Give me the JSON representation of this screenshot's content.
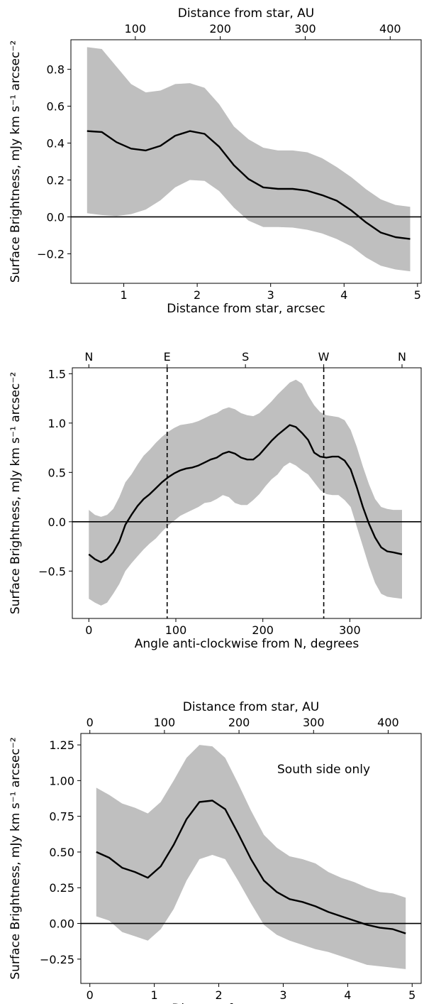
{
  "chart_data": [
    {
      "type": "line",
      "xlabel": "Distance from star, arcsec",
      "top_xlabel": "Distance from star, AU",
      "ylabel": "Surface Brightness, mJy km s⁻¹ arcsec⁻²",
      "xlim": [
        0.28,
        5.05
      ],
      "ylim": [
        -0.36,
        0.96
      ],
      "xticks": [
        1,
        2,
        3,
        4,
        5
      ],
      "xtick_labels": [
        "1",
        "2",
        "3",
        "4",
        "5"
      ],
      "yticks": [
        -0.2,
        0.0,
        0.2,
        0.4,
        0.6,
        0.8
      ],
      "ytick_labels": [
        "−0.2",
        "0.0",
        "0.2",
        "0.4",
        "0.6",
        "0.8"
      ],
      "top_ticks": [
        1.157,
        2.314,
        3.471,
        4.628
      ],
      "top_tick_labels": [
        "100",
        "200",
        "300",
        "400"
      ],
      "zero_line": true,
      "x": [
        0.5,
        0.7,
        0.9,
        1.1,
        1.3,
        1.5,
        1.7,
        1.9,
        2.1,
        2.3,
        2.5,
        2.7,
        2.9,
        3.1,
        3.3,
        3.5,
        3.7,
        3.9,
        4.1,
        4.3,
        4.5,
        4.7,
        4.9
      ],
      "series": [
        {
          "values": [
            0.465,
            0.46,
            0.405,
            0.37,
            0.36,
            0.385,
            0.44,
            0.465,
            0.45,
            0.38,
            0.28,
            0.205,
            0.16,
            0.152,
            0.152,
            0.142,
            0.118,
            0.088,
            0.035,
            -0.03,
            -0.085,
            -0.11,
            -0.12
          ],
          "lower": [
            0.02,
            0.01,
            0.005,
            0.015,
            0.04,
            0.09,
            0.16,
            0.2,
            0.195,
            0.14,
            0.05,
            -0.02,
            -0.055,
            -0.055,
            -0.058,
            -0.07,
            -0.09,
            -0.12,
            -0.16,
            -0.22,
            -0.265,
            -0.285,
            -0.295
          ],
          "upper": [
            0.92,
            0.91,
            0.815,
            0.72,
            0.675,
            0.685,
            0.72,
            0.725,
            0.7,
            0.61,
            0.49,
            0.42,
            0.375,
            0.36,
            0.36,
            0.35,
            0.318,
            0.27,
            0.215,
            0.15,
            0.095,
            0.065,
            0.055
          ]
        }
      ]
    },
    {
      "type": "line",
      "xlabel": "Angle anti-clockwise from N, degrees",
      "ylabel": "Surface Brightness, mJy km s⁻¹ arcsec⁻²",
      "xlim": [
        -19,
        382
      ],
      "ylim": [
        -0.98,
        1.56
      ],
      "xticks": [
        0,
        100,
        200,
        300
      ],
      "xtick_labels": [
        "0",
        "100",
        "200",
        "300"
      ],
      "yticks": [
        -0.5,
        0.0,
        0.5,
        1.0,
        1.5
      ],
      "ytick_labels": [
        "−0.5",
        "0.0",
        "0.5",
        "1.0",
        "1.5"
      ],
      "top_ticks": [
        0,
        90,
        180,
        270,
        360
      ],
      "top_tick_labels": [
        "N",
        "E",
        "S",
        "W",
        "N"
      ],
      "vlines": [
        90,
        270
      ],
      "zero_line": true,
      "x": [
        0,
        7,
        14,
        21,
        28,
        35,
        42,
        49,
        56,
        63,
        70,
        77,
        84,
        91,
        98,
        105,
        112,
        119,
        126,
        133,
        140,
        147,
        154,
        161,
        168,
        175,
        182,
        189,
        196,
        203,
        210,
        217,
        224,
        231,
        238,
        245,
        252,
        259,
        266,
        273,
        280,
        287,
        294,
        301,
        308,
        315,
        322,
        329,
        336,
        343,
        350,
        360
      ],
      "series": [
        {
          "values": [
            -0.33,
            -0.38,
            -0.41,
            -0.38,
            -0.31,
            -0.2,
            -0.03,
            0.07,
            0.16,
            0.23,
            0.28,
            0.34,
            0.4,
            0.45,
            0.49,
            0.52,
            0.54,
            0.55,
            0.57,
            0.6,
            0.63,
            0.65,
            0.69,
            0.71,
            0.69,
            0.65,
            0.63,
            0.63,
            0.68,
            0.75,
            0.82,
            0.88,
            0.93,
            0.98,
            0.96,
            0.9,
            0.83,
            0.7,
            0.66,
            0.65,
            0.66,
            0.66,
            0.62,
            0.53,
            0.35,
            0.15,
            -0.02,
            -0.16,
            -0.26,
            -0.3,
            -0.31,
            -0.33
          ],
          "lower": [
            -0.78,
            -0.82,
            -0.85,
            -0.82,
            -0.73,
            -0.63,
            -0.5,
            -0.42,
            -0.35,
            -0.28,
            -0.22,
            -0.17,
            -0.1,
            -0.04,
            0.01,
            0.06,
            0.09,
            0.12,
            0.15,
            0.19,
            0.2,
            0.23,
            0.27,
            0.25,
            0.19,
            0.17,
            0.17,
            0.22,
            0.28,
            0.36,
            0.43,
            0.48,
            0.56,
            0.6,
            0.57,
            0.52,
            0.48,
            0.4,
            0.32,
            0.28,
            0.27,
            0.27,
            0.22,
            0.15,
            -0.05,
            -0.25,
            -0.45,
            -0.62,
            -0.73,
            -0.76,
            -0.77,
            -0.78
          ],
          "upper": [
            0.12,
            0.07,
            0.05,
            0.07,
            0.13,
            0.25,
            0.4,
            0.48,
            0.58,
            0.67,
            0.73,
            0.8,
            0.86,
            0.91,
            0.95,
            0.98,
            0.99,
            1.0,
            1.02,
            1.05,
            1.08,
            1.1,
            1.14,
            1.16,
            1.14,
            1.1,
            1.08,
            1.07,
            1.1,
            1.16,
            1.22,
            1.29,
            1.35,
            1.41,
            1.44,
            1.4,
            1.28,
            1.18,
            1.11,
            1.08,
            1.07,
            1.06,
            1.03,
            0.93,
            0.76,
            0.56,
            0.38,
            0.23,
            0.15,
            0.13,
            0.12,
            0.12
          ]
        }
      ]
    },
    {
      "type": "line",
      "xlabel": "Distance from star, arcsec",
      "top_xlabel": "Distance from star, AU",
      "ylabel": "Surface Brightness, mJy km s⁻¹ arcsec⁻²",
      "annotation": "South side only",
      "xlim": [
        -0.14,
        5.14
      ],
      "ylim": [
        -0.42,
        1.33
      ],
      "xticks": [
        0,
        1,
        2,
        3,
        4,
        5
      ],
      "xtick_labels": [
        "0",
        "1",
        "2",
        "3",
        "4",
        "5"
      ],
      "yticks": [
        -0.25,
        0.0,
        0.25,
        0.5,
        0.75,
        1.0,
        1.25
      ],
      "ytick_labels": [
        "−0.25",
        "0.00",
        "0.25",
        "0.50",
        "0.75",
        "1.00",
        "1.25"
      ],
      "top_ticks": [
        0,
        1.157,
        2.314,
        3.471,
        4.628
      ],
      "top_tick_labels": [
        "0",
        "100",
        "200",
        "300",
        "400"
      ],
      "zero_line": true,
      "x": [
        0.1,
        0.3,
        0.5,
        0.7,
        0.9,
        1.1,
        1.3,
        1.5,
        1.7,
        1.9,
        2.1,
        2.3,
        2.5,
        2.7,
        2.9,
        3.1,
        3.3,
        3.5,
        3.7,
        3.9,
        4.1,
        4.3,
        4.5,
        4.7,
        4.9
      ],
      "series": [
        {
          "values": [
            0.5,
            0.46,
            0.39,
            0.36,
            0.32,
            0.4,
            0.55,
            0.73,
            0.85,
            0.86,
            0.8,
            0.63,
            0.45,
            0.3,
            0.22,
            0.17,
            0.15,
            0.12,
            0.08,
            0.05,
            0.02,
            -0.01,
            -0.03,
            -0.04,
            -0.07
          ],
          "lower": [
            0.05,
            0.02,
            -0.06,
            -0.09,
            -0.12,
            -0.04,
            0.1,
            0.3,
            0.45,
            0.48,
            0.45,
            0.3,
            0.14,
            -0.01,
            -0.08,
            -0.12,
            -0.15,
            -0.18,
            -0.2,
            -0.23,
            -0.26,
            -0.29,
            -0.3,
            -0.31,
            -0.32
          ],
          "upper": [
            0.95,
            0.9,
            0.84,
            0.81,
            0.77,
            0.85,
            1.0,
            1.16,
            1.25,
            1.24,
            1.16,
            0.98,
            0.79,
            0.62,
            0.53,
            0.47,
            0.45,
            0.42,
            0.36,
            0.32,
            0.29,
            0.25,
            0.22,
            0.21,
            0.18
          ]
        }
      ]
    }
  ]
}
